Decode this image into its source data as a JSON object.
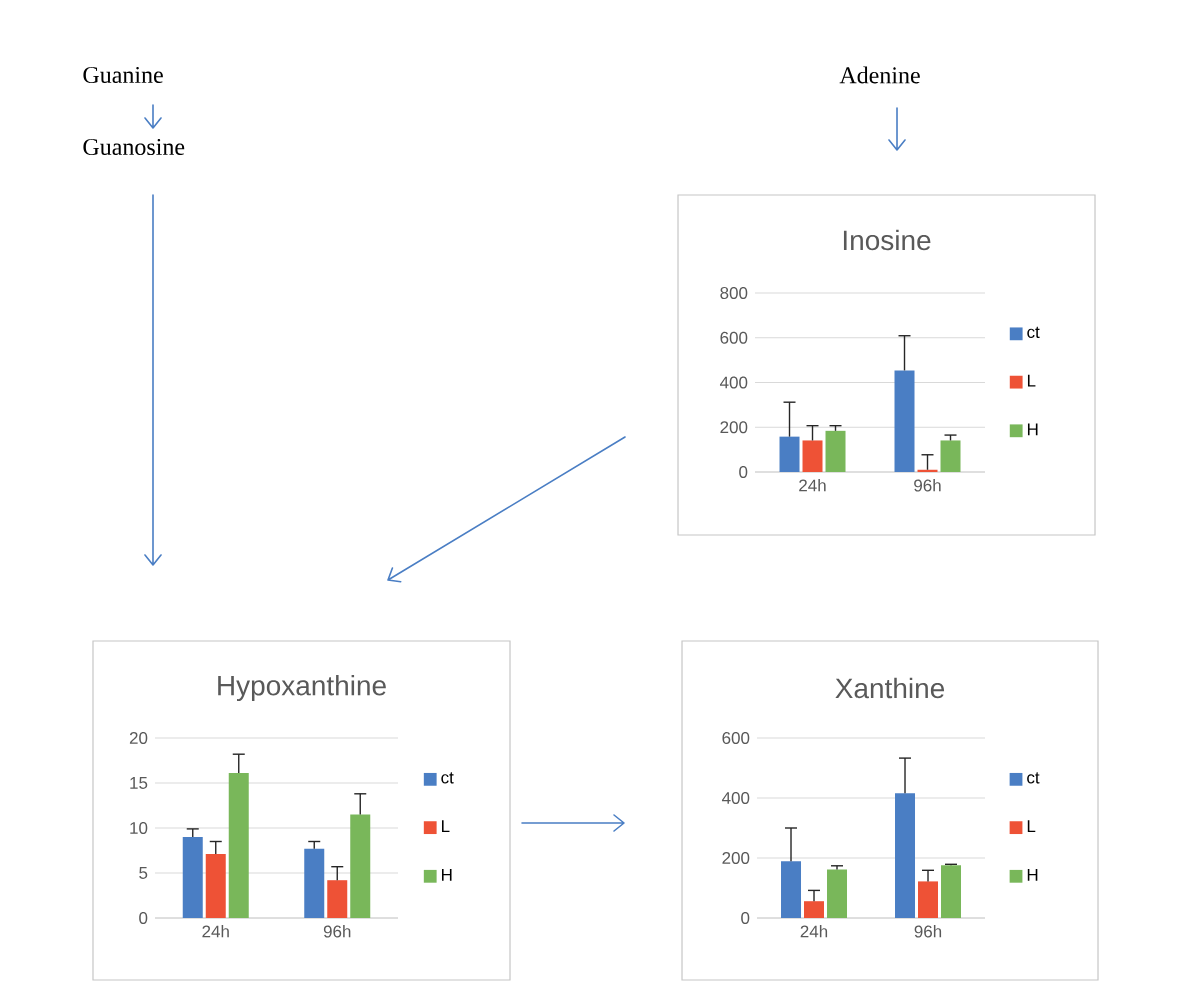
{
  "chart_data": [
    {
      "type": "bar",
      "title": "Inosine",
      "categories": [
        "24h",
        "96h"
      ],
      "ylim": [
        0,
        800
      ],
      "yticks": [
        0,
        200,
        400,
        600,
        800
      ],
      "grid": "y",
      "legend": "right",
      "series": [
        {
          "name": "ct",
          "color": "#4a7ec4",
          "values": [
            158,
            454
          ],
          "errors": [
            [
              158,
              312
            ],
            [
              454,
              609
            ]
          ]
        },
        {
          "name": "L",
          "color": "#ee5236",
          "values": [
            141,
            10
          ],
          "errors": [
            [
              141,
              207
            ],
            [
              10,
              77
            ]
          ]
        },
        {
          "name": "H",
          "color": "#79b75a",
          "values": [
            184,
            141
          ],
          "errors": [
            [
              184,
              207
            ],
            [
              141,
              165
            ]
          ]
        }
      ]
    },
    {
      "type": "bar",
      "title": "Hypoxanthine",
      "categories": [
        "24h",
        "96h"
      ],
      "ylim": [
        0,
        20
      ],
      "yticks": [
        0,
        5,
        10,
        15,
        20
      ],
      "grid": "y",
      "legend": "right",
      "series": [
        {
          "name": "ct",
          "color": "#4a7ec4",
          "values": [
            9.0,
            7.7
          ],
          "errors": [
            [
              9.0,
              9.9
            ],
            [
              7.7,
              8.5
            ]
          ]
        },
        {
          "name": "L",
          "color": "#ee5236",
          "values": [
            7.1,
            4.2
          ],
          "errors": [
            [
              7.1,
              8.5
            ],
            [
              4.2,
              5.7
            ]
          ]
        },
        {
          "name": "H",
          "color": "#79b75a",
          "values": [
            16.1,
            11.5
          ],
          "errors": [
            [
              16.1,
              18.2
            ],
            [
              11.5,
              13.8
            ]
          ]
        }
      ]
    },
    {
      "type": "bar",
      "title": "Xanthine",
      "categories": [
        "24h",
        "96h"
      ],
      "ylim": [
        0,
        600
      ],
      "yticks": [
        0,
        200,
        400,
        600
      ],
      "grid": "y",
      "legend": "right",
      "series": [
        {
          "name": "ct",
          "color": "#4a7ec4",
          "values": [
            189,
            416
          ],
          "errors": [
            [
              189,
              300
            ],
            [
              416,
              533
            ]
          ]
        },
        {
          "name": "L",
          "color": "#ee5236",
          "values": [
            56,
            122
          ],
          "errors": [
            [
              56,
              92
            ],
            [
              122,
              159
            ]
          ]
        },
        {
          "name": "H",
          "color": "#79b75a",
          "values": [
            162,
            176
          ],
          "errors": [
            [
              162,
              174
            ],
            [
              176,
              179
            ]
          ]
        }
      ]
    },
    {
      "type": "other",
      "annotations": [
        "Guanine",
        "Guanosine",
        "Adenine"
      ]
    }
  ]
}
